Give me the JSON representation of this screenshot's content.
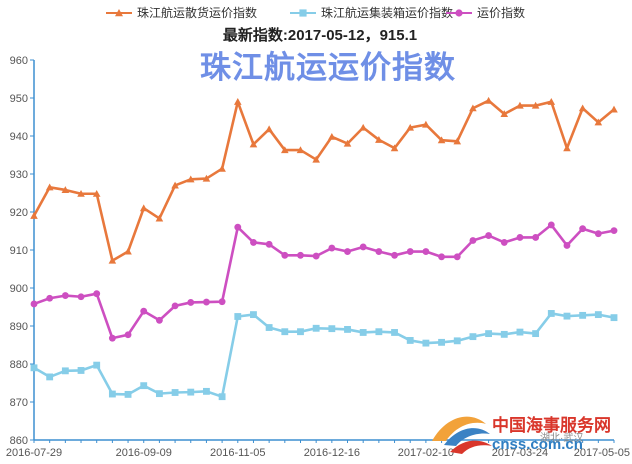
{
  "chart_data": {
    "type": "line",
    "title": "珠江航运运价指数",
    "subtitle": "最新指数:2017-05-12，915.1",
    "legend_position": "top",
    "grid": false,
    "ylim": [
      860,
      960
    ],
    "y_ticks": [
      "860",
      "870",
      "880",
      "890",
      "900",
      "910",
      "920",
      "930",
      "940",
      "950",
      "960"
    ],
    "x_tick_labels": [
      "2016-07-29",
      "2016-09-09",
      "2016-11-05",
      "2016-12-16",
      "2017-02-10",
      "2017-03-24",
      "2017-05-05"
    ],
    "x_tick_index": [
      0,
      7,
      13,
      19,
      25,
      31,
      37
    ],
    "series": [
      {
        "name": "珠江航运散货运价指数",
        "color": "#e8783c",
        "marker": "triangle",
        "values": [
          919.0,
          926.5,
          925.8,
          924.8,
          924.8,
          907.2,
          909.6,
          921.0,
          918.3,
          927.0,
          928.6,
          928.8,
          931.4,
          949.0,
          937.8,
          941.8,
          936.3,
          936.3,
          933.8,
          939.8,
          938.0,
          942.2,
          939.0,
          936.8,
          942.2,
          943.0,
          938.9,
          938.6,
          947.3,
          949.3,
          945.8,
          948.0,
          948.0,
          949.0,
          936.8,
          947.3,
          943.6,
          947.0
        ]
      },
      {
        "name": "珠江航运集装箱运价指数",
        "color": "#86cde8",
        "marker": "square",
        "values": [
          879.0,
          876.6,
          878.2,
          878.3,
          879.7,
          872.1,
          872.0,
          874.3,
          872.2,
          872.5,
          872.6,
          872.8,
          871.4,
          892.5,
          893.0,
          889.6,
          888.5,
          888.5,
          889.4,
          889.3,
          889.1,
          888.3,
          888.5,
          888.3,
          886.2,
          885.5,
          885.7,
          886.1,
          887.2,
          888.0,
          887.8,
          888.4,
          888.0,
          893.3,
          892.6,
          892.8,
          893.0,
          892.2
        ]
      },
      {
        "name": "运价指数",
        "color": "#cd4fc1",
        "marker": "circle",
        "values": [
          895.8,
          897.3,
          898.0,
          897.7,
          898.5,
          886.8,
          887.7,
          893.9,
          891.5,
          895.3,
          896.2,
          896.3,
          896.4,
          916.0,
          912.0,
          911.5,
          908.6,
          908.6,
          908.4,
          910.5,
          909.6,
          910.8,
          909.6,
          908.6,
          909.6,
          909.6,
          908.2,
          908.2,
          912.5,
          913.8,
          912.0,
          913.3,
          913.3,
          916.6,
          911.2,
          915.6,
          914.3,
          915.1
        ]
      }
    ]
  },
  "watermark": {
    "logo": "cnss-logo",
    "text1": "中国海事服务网",
    "text2": "cnss.com.cn",
    "text3": "湖北·武汉"
  }
}
